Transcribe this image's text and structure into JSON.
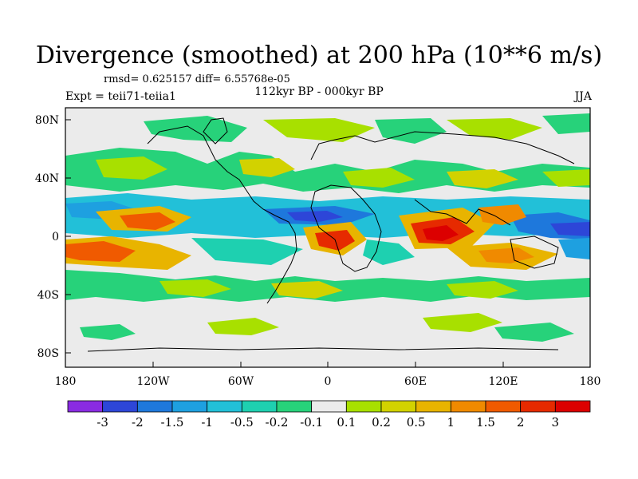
{
  "title": "Divergence (smoothed) at 200 hPa (10**6 m/s)",
  "stats": "rmsd= 0.625157 diff= 6.55768e-05",
  "experiment": "Expt = teii71-teiia1",
  "period": "112kyr BP - 000kyr BP",
  "season": "JJA",
  "axes": {
    "lon_ticks": [
      "180",
      "120W",
      "60W",
      "0",
      "60E",
      "120E",
      "180"
    ],
    "lat_ticks": [
      "80N",
      "40N",
      "0",
      "40S",
      "80S"
    ]
  },
  "colorbar": {
    "labels": [
      "-3",
      "-2",
      "-1.5",
      "-1",
      "-0.5",
      "-0.2",
      "-0.1",
      "0.1",
      "0.2",
      "0.5",
      "1",
      "1.5",
      "2",
      "3"
    ],
    "colors": [
      "#8a2be2",
      "#2d46d8",
      "#1e78dc",
      "#1ea0e0",
      "#22c0d8",
      "#1ed0b0",
      "#27d27a",
      "#ebebeb",
      "#a8e000",
      "#d2d200",
      "#e8b400",
      "#f08a00",
      "#f05a00",
      "#e62a00",
      "#dc0000"
    ]
  }
}
